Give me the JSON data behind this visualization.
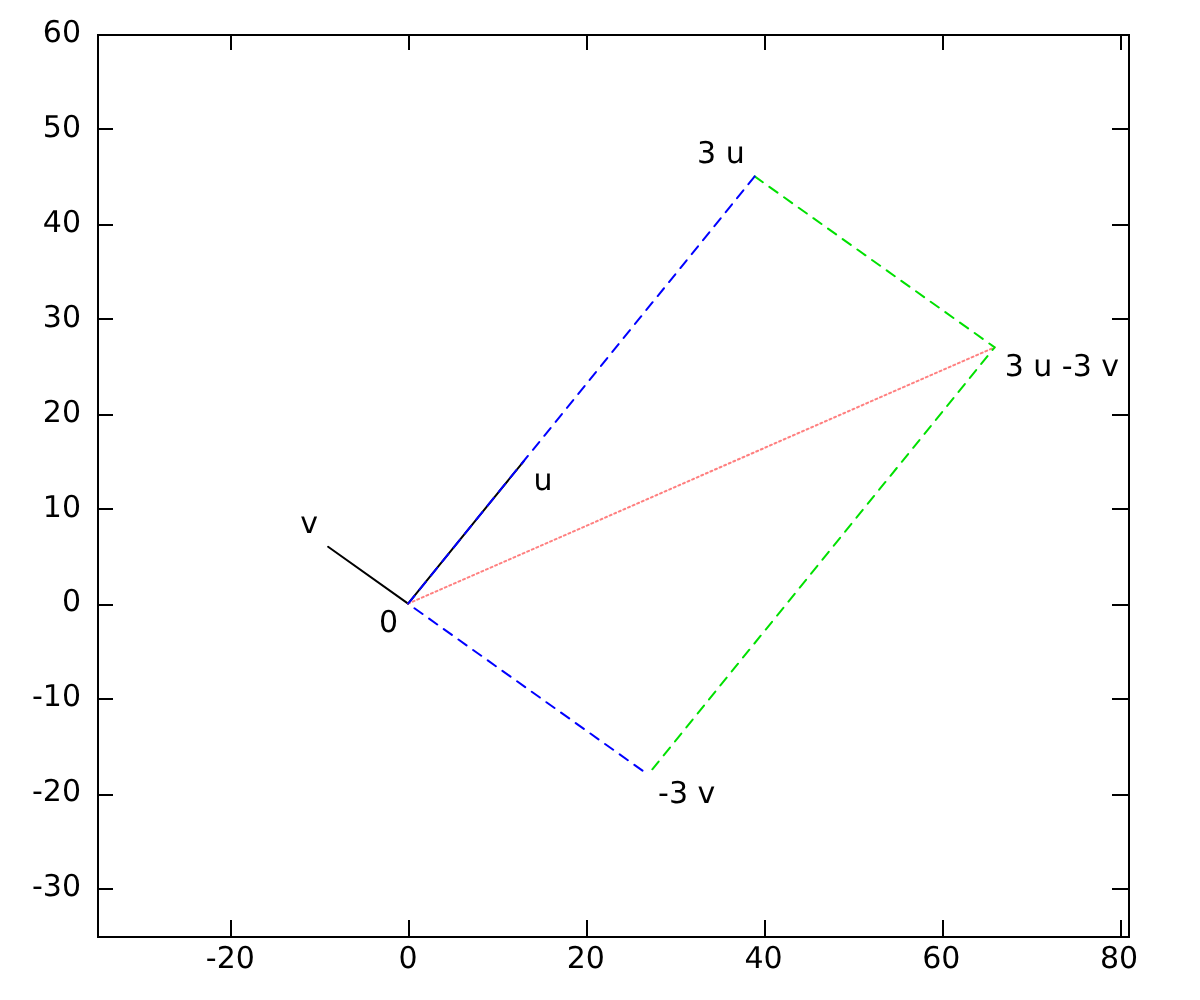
{
  "chart_data": {
    "type": "line",
    "xlim": [
      -35,
      81
    ],
    "xticks": [
      -20,
      0,
      20,
      40,
      60,
      80
    ],
    "ylim": [
      -35,
      60
    ],
    "yticks": [
      -30,
      -20,
      -10,
      0,
      10,
      20,
      30,
      40,
      50,
      60
    ],
    "grid": false,
    "legend": false,
    "marker": "none",
    "series": [
      {
        "color": "#0000ff",
        "line_style": "dashed",
        "x": [
          39,
          0,
          27
        ],
        "values": [
          45,
          0,
          -18
        ]
      },
      {
        "color": "#00e000",
        "line_style": "dashed",
        "x": [
          39,
          66,
          27
        ],
        "values": [
          45,
          27,
          -18
        ]
      },
      {
        "color": "#ff8080",
        "line_style": "dotted",
        "x": [
          0,
          66
        ],
        "values": [
          0,
          27
        ]
      },
      {
        "color": "#000000",
        "line_style": "solid",
        "x": [
          0,
          13
        ],
        "values": [
          0,
          15
        ]
      },
      {
        "color": "#000000",
        "line_style": "solid",
        "x": [
          0,
          -9
        ],
        "values": [
          0,
          6
        ]
      }
    ],
    "annotations": [
      {
        "text": "0",
        "x": 0,
        "y": 0
      },
      {
        "text": "u",
        "x": 13,
        "y": 15
      },
      {
        "text": "v",
        "x": -9,
        "y": 6
      },
      {
        "text": "3 u",
        "x": 39,
        "y": 45
      },
      {
        "text": "3 u -3 v",
        "x": 66,
        "y": 27
      },
      {
        "text": "-3 v",
        "x": 27,
        "y": -18
      }
    ]
  }
}
